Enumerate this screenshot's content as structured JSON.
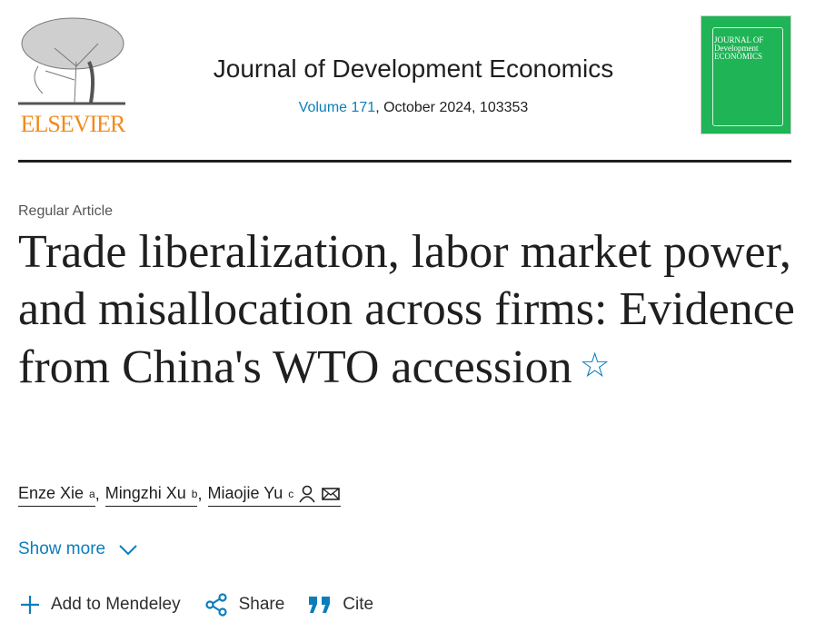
{
  "publisher": {
    "logo_text": "ELSEVIER",
    "brand_color": "#f28a1c"
  },
  "journal": {
    "title": "Journal of Development Economics",
    "volume_link": "Volume 171",
    "meta_rest": ", October 2024, 103353",
    "cover_text": "JOURNAL OF Development ECONOMICS",
    "cover_color": "#1fb456"
  },
  "article": {
    "type": "Regular Article",
    "title": "Trade liberalization, labor market power, and misallocation across firms: Evidence from China's WTO accession",
    "bookmark_icon": "star-outline-icon"
  },
  "authors": [
    {
      "name": "Enze Xie",
      "aff": "a"
    },
    {
      "name": "Mingzhi Xu",
      "aff": "b"
    },
    {
      "name": "Miaojie Yu",
      "aff": "c"
    }
  ],
  "show_more": "Show more",
  "actions": {
    "mendeley": "Add to Mendeley",
    "share": "Share",
    "cite": "Cite"
  },
  "accent": "#0c7dbb"
}
